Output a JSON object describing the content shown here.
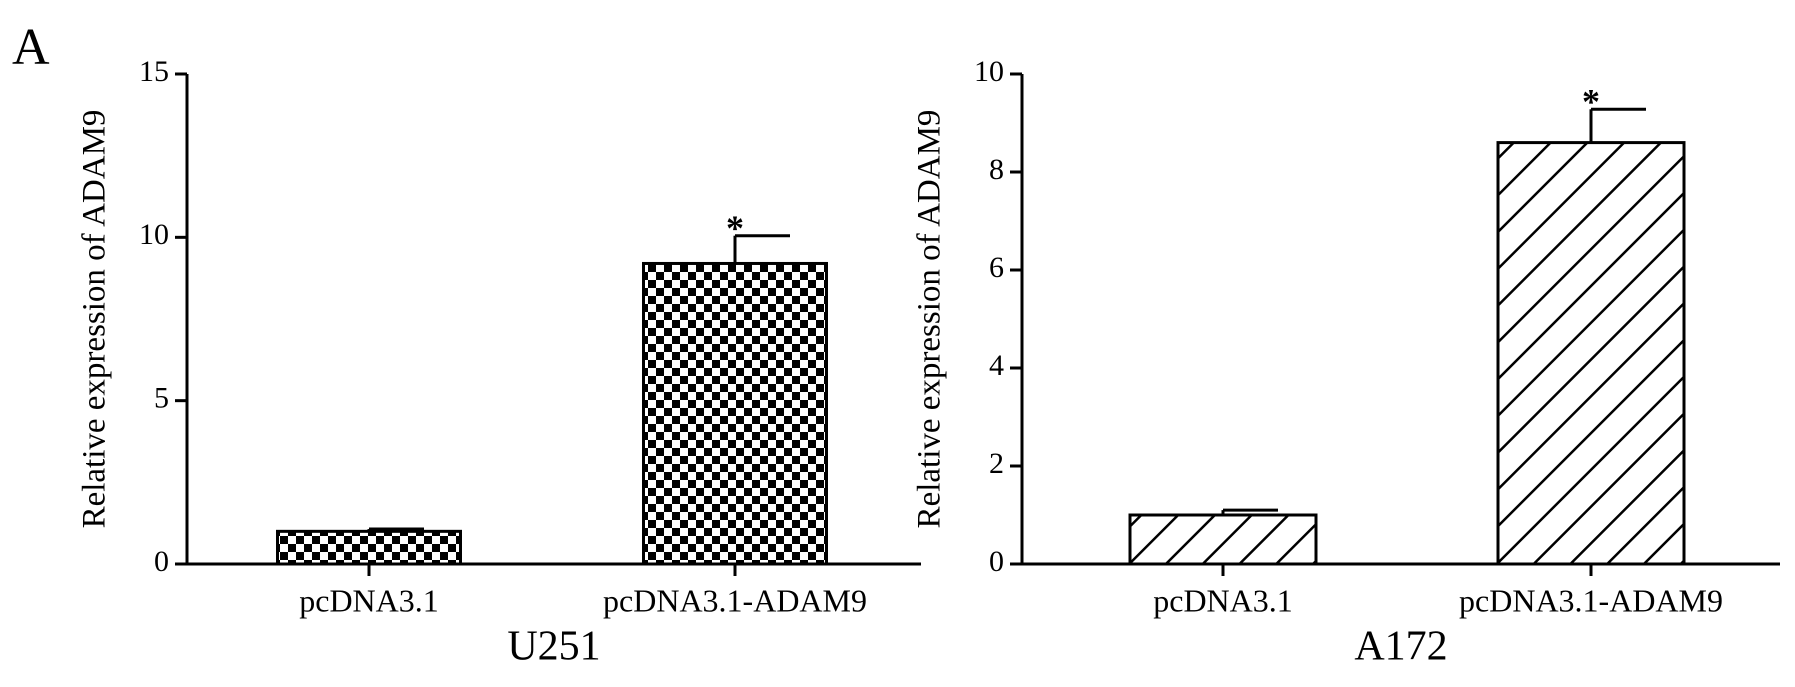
{
  "panel_label": "A",
  "chart_data": [
    {
      "type": "bar",
      "xlabel": "U251",
      "ylabel": "Relative expression of ADAM9",
      "categories": [
        "pcDNA3.1",
        "pcDNA3.1-ADAM9"
      ],
      "values": [
        1.0,
        9.2
      ],
      "errors": [
        0.07,
        0.85
      ],
      "bar_annotations": [
        null,
        "*"
      ],
      "color": "#000000",
      "pattern": "checker",
      "ylim": [
        0,
        15
      ],
      "yticks": [
        0,
        5,
        10,
        15
      ],
      "grid": false
    },
    {
      "type": "bar",
      "xlabel": "A172",
      "ylabel": "Relative expression of ADAM9",
      "categories": [
        "pcDNA3.1",
        "pcDNA3.1-ADAM9"
      ],
      "values": [
        1.0,
        8.6
      ],
      "errors": [
        0.1,
        0.68
      ],
      "bar_annotations": [
        null,
        "*"
      ],
      "color": "#000000",
      "pattern": "hatch",
      "ylim": [
        0,
        10
      ],
      "yticks": [
        0,
        2,
        4,
        6,
        8,
        10
      ],
      "grid": false
    }
  ]
}
